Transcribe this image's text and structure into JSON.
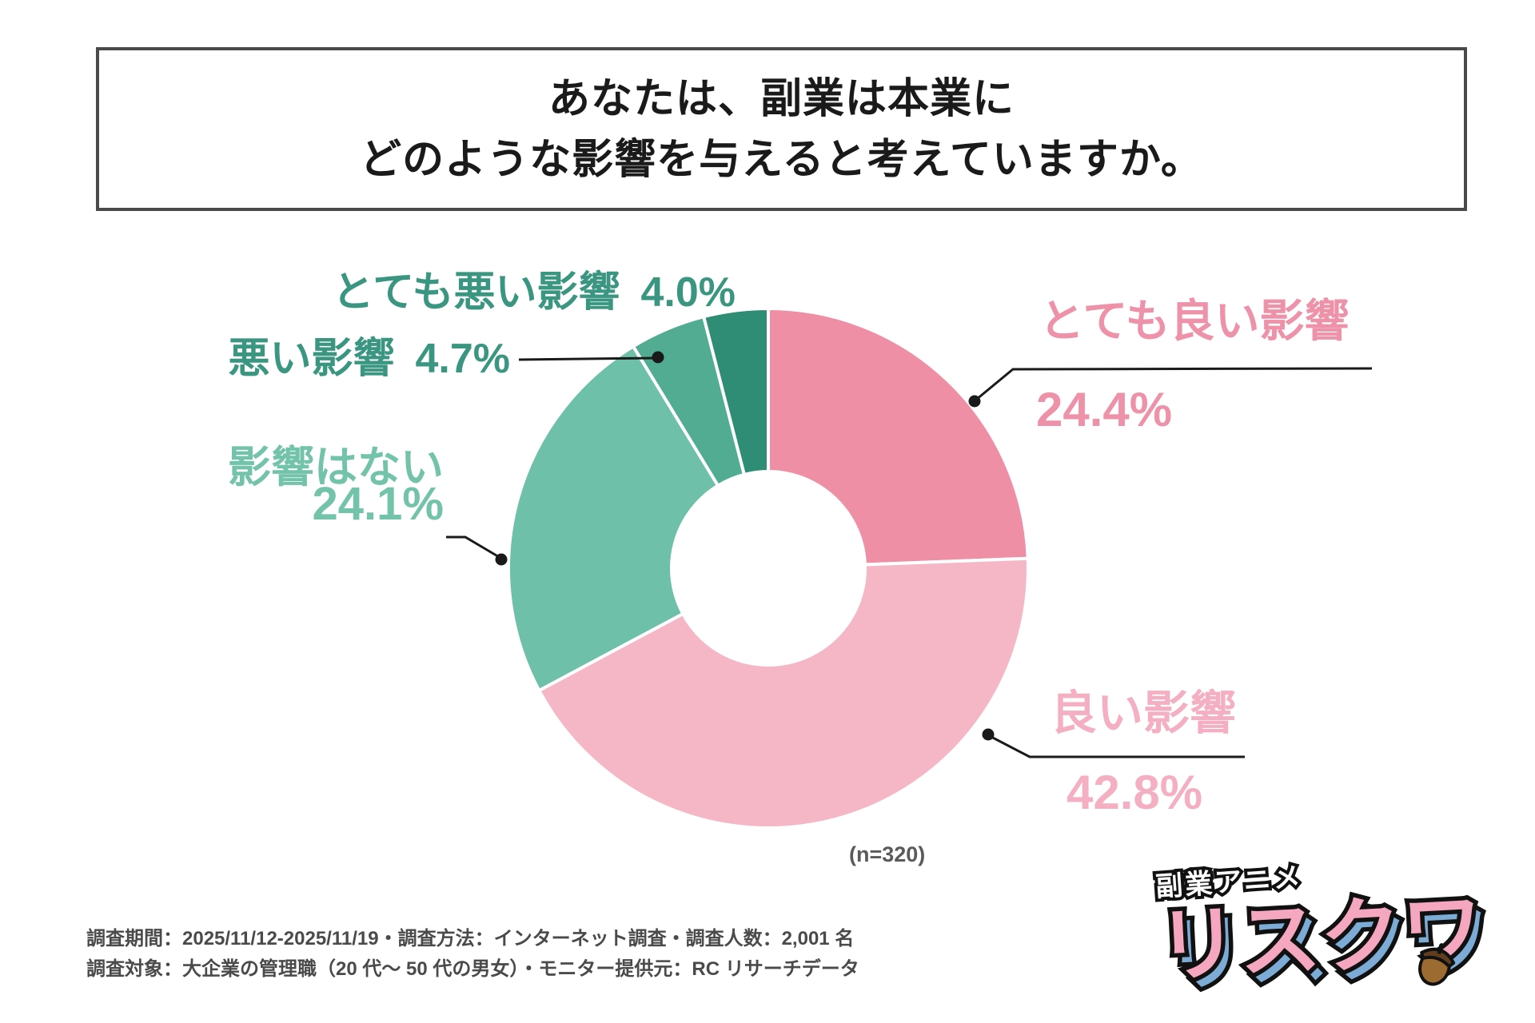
{
  "title": {
    "line1": "あなたは、副業は本業に",
    "line2": "どのような影響を与えると考えていますか。"
  },
  "chart_data": {
    "type": "pie",
    "donut": true,
    "start_angle_deg": 0,
    "direction": "clockwise",
    "title": "あなたは、副業は本業にどのような影響を与えると考えていますか。",
    "n_label": "(n=320)",
    "legend_position": "callout-labels",
    "items": [
      {
        "key": "very-good",
        "label": "とても良い影響",
        "value": 24.4,
        "pct": "24.4%",
        "color": "#EE8FA6",
        "label_color": "#ED92A8"
      },
      {
        "key": "good",
        "label": "良い影響",
        "value": 42.8,
        "pct": "42.8%",
        "color": "#F5B7C6",
        "label_color": "#F4AFC2"
      },
      {
        "key": "none",
        "label": "影響はない",
        "value": 24.1,
        "pct": "24.1%",
        "color": "#6FC0A8",
        "label_color": "#72C3AA"
      },
      {
        "key": "bad",
        "label": "悪い影響",
        "value": 4.7,
        "pct": "4.7%",
        "color": "#52AC91",
        "label_color": "#3A9681"
      },
      {
        "key": "very-bad",
        "label": "とても悪い影響",
        "value": 4.0,
        "pct": "4.0%",
        "color": "#2F8C75",
        "label_color": "#3A9681"
      }
    ]
  },
  "footer": {
    "line1": "調査期間：2025/11/12-2025/11/19・調査方法：インターネット調査・調査人数：2,001 名",
    "line2": "調査対象：大企業の管理職（20 代〜 50 代の男女）・モニター提供元：RC リサーチデータ"
  },
  "logo": {
    "sub": "副業アニメ",
    "main": "リスクワ",
    "main_color": "#F4A7BE",
    "shadow_color": "#7CACD6",
    "acorn_body_color": "#9C6B32",
    "acorn_cap_color": "#5F3D1E"
  }
}
